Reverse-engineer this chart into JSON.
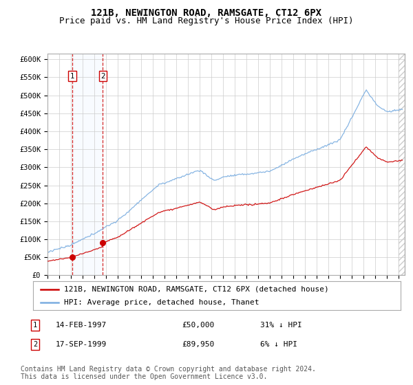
{
  "title": "121B, NEWINGTON ROAD, RAMSGATE, CT12 6PX",
  "subtitle": "Price paid vs. HM Land Registry's House Price Index (HPI)",
  "ylabel_ticks": [
    "£0",
    "£50K",
    "£100K",
    "£150K",
    "£200K",
    "£250K",
    "£300K",
    "£350K",
    "£400K",
    "£450K",
    "£500K",
    "£550K",
    "£600K"
  ],
  "ytick_values": [
    0,
    50000,
    100000,
    150000,
    200000,
    250000,
    300000,
    350000,
    400000,
    450000,
    500000,
    550000,
    600000
  ],
  "xmin": 1995.0,
  "xmax": 2025.5,
  "ymin": 0,
  "ymax": 615000,
  "sale1_date": 1997.12,
  "sale1_price": 50000,
  "sale2_date": 1999.72,
  "sale2_price": 89950,
  "line1_label": "121B, NEWINGTON ROAD, RAMSGATE, CT12 6PX (detached house)",
  "line2_label": "HPI: Average price, detached house, Thanet",
  "annotation1_label": "1",
  "annotation1_date": "14-FEB-1997",
  "annotation1_price": "£50,000",
  "annotation1_pct": "31% ↓ HPI",
  "annotation2_label": "2",
  "annotation2_date": "17-SEP-1999",
  "annotation2_price": "£89,950",
  "annotation2_pct": "6% ↓ HPI",
  "footer": "Contains HM Land Registry data © Crown copyright and database right 2024.\nThis data is licensed under the Open Government Licence v3.0.",
  "red_color": "#cc0000",
  "blue_color": "#7aade0",
  "bg_shading_color": "#ddeeff",
  "grid_color": "#cccccc",
  "title_fontsize": 10,
  "subtitle_fontsize": 9,
  "tick_fontsize": 7.5,
  "legend_fontsize": 8,
  "footer_fontsize": 7
}
